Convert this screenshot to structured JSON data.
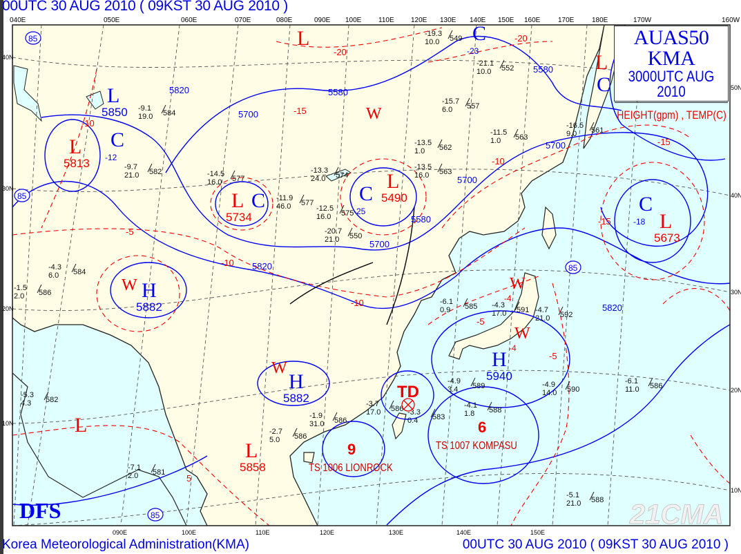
{
  "header": {
    "title": "00UTC 30 AUG 2010 ( 09KST 30 AUG 2010 )"
  },
  "footer": {
    "agency": "Korea Meteorological Administration(KMA)",
    "time": "00UTC 30 AUG 2010 ( 09KST 30 AUG 2010 )"
  },
  "legend": {
    "product": "AUAS50  KMA",
    "valid": "3000UTC AUG 2010",
    "fields": "HEIGHT(gpm) , TEMP(C)"
  },
  "axes": {
    "top": [
      "040E",
      "050E",
      "060E",
      "070E",
      "080E",
      "090E",
      "100E",
      "110E",
      "120E",
      "130E",
      "140E",
      "150E",
      "160E",
      "170E",
      "180E",
      "170W",
      "160W"
    ],
    "bottom": [
      "090E",
      "100E",
      "110E",
      "120E",
      "130E",
      "140E",
      "150E"
    ],
    "left": [
      "40N",
      "30N",
      "20N",
      "10N"
    ],
    "right": [
      "50N",
      "40N",
      "30N",
      "20N",
      "10N"
    ]
  },
  "colors": {
    "land": "#fffde6",
    "sea": "#e0ffff",
    "height_contour": "#0000ee",
    "temp_contour": "#ee0000",
    "graticule": "#555555"
  },
  "centers": [
    {
      "type": "H",
      "color": "#0000ee",
      "value": "5882"
    },
    {
      "type": "W",
      "color": "#ee0000",
      "value": ""
    },
    {
      "type": "H",
      "color": "#0000ee",
      "value": "5882"
    },
    {
      "type": "W",
      "color": "#ee0000",
      "value": ""
    },
    {
      "type": "H",
      "color": "#0000ee",
      "value": "5940"
    },
    {
      "type": "W",
      "color": "#ee0000",
      "value": "-4"
    },
    {
      "type": "W",
      "color": "#ee0000",
      "value": "-4"
    },
    {
      "type": "L",
      "color": "#ee0000",
      "value": "5813"
    },
    {
      "type": "L",
      "color": "#0000ee",
      "value": "5850"
    },
    {
      "type": "C",
      "color": "#0000ee",
      "value": "-12"
    },
    {
      "type": "L",
      "color": "#ee0000",
      "value": "5734"
    },
    {
      "type": "C",
      "color": "#0000ee",
      "value": ""
    },
    {
      "type": "L",
      "color": "#ee0000",
      "value": "5490"
    },
    {
      "type": "C",
      "color": "#0000ee",
      "value": "-25"
    },
    {
      "type": "C",
      "color": "#0000ee",
      "value": "-18"
    },
    {
      "type": "L",
      "color": "#ee0000",
      "value": "5673"
    },
    {
      "type": "L",
      "color": "#ee0000",
      "value": ""
    },
    {
      "type": "L",
      "color": "#ee0000",
      "value": ""
    },
    {
      "type": "C",
      "color": "#0000ee",
      "value": ""
    },
    {
      "type": "L",
      "color": "#ee0000",
      "value": ""
    },
    {
      "type": "L",
      "color": "#ee0000",
      "value": "5858"
    },
    {
      "type": "W",
      "color": "#ee0000",
      "value": ""
    },
    {
      "type": "C",
      "color": "#0000ee",
      "value": "-23"
    }
  ],
  "contour_labels": [
    {
      "text": "5580",
      "color": "#0000ee"
    },
    {
      "text": "5700",
      "color": "#0000ee"
    },
    {
      "text": "5820",
      "color": "#0000ee"
    },
    {
      "text": "5700",
      "color": "#0000ee"
    },
    {
      "text": "5820",
      "color": "#0000ee"
    },
    {
      "text": "5820",
      "color": "#0000ee"
    },
    {
      "text": "5700",
      "color": "#0000ee"
    },
    {
      "text": "5580",
      "color": "#0000ee"
    },
    {
      "text": "5580",
      "color": "#0000ee"
    },
    {
      "text": "5700",
      "color": "#0000ee"
    },
    {
      "text": "-20",
      "color": "#ee0000"
    },
    {
      "text": "-20",
      "color": "#ee0000"
    },
    {
      "text": "-10",
      "color": "#ee0000"
    },
    {
      "text": "-15",
      "color": "#ee0000"
    },
    {
      "text": "-15",
      "color": "#ee0000"
    },
    {
      "text": "-10",
      "color": "#ee0000"
    },
    {
      "text": "-5",
      "color": "#ee0000"
    },
    {
      "text": "-5",
      "color": "#ee0000"
    },
    {
      "text": "-5",
      "color": "#ee0000"
    },
    {
      "text": "-10",
      "color": "#ee0000"
    },
    {
      "text": "5",
      "color": "#ee0000"
    },
    {
      "text": "-15",
      "color": "#ee0000"
    },
    {
      "text": "-10",
      "color": "#ee0000"
    }
  ],
  "circled_labels": [
    "85",
    "85",
    "85",
    "85"
  ],
  "tropical": {
    "td": "TD",
    "lionrock": {
      "symbol": "9",
      "label": "TS  1006 LIONROCK"
    },
    "kompasu": {
      "symbol": "6",
      "label": "TS  1007 KOMPASU"
    }
  },
  "stations": [
    {
      "t": "-4.9",
      "d": "3.4",
      "h": "589"
    },
    {
      "t": "-4.1",
      "d": "1.8",
      "h": "588"
    },
    {
      "t": "-3.3",
      "d": "0.4",
      "h": "583"
    },
    {
      "t": "-3.7",
      "d": "17.0",
      "h": "586"
    },
    {
      "t": "-1.9",
      "d": "31.0",
      "h": "586"
    },
    {
      "t": "-2.7",
      "d": "5.0",
      "h": "586"
    },
    {
      "t": "-4.3",
      "d": "17.0",
      "h": "591"
    },
    {
      "t": "-4.7",
      "d": "21.0",
      "h": "592"
    },
    {
      "t": "-6.1",
      "d": "0.9",
      "h": "585"
    },
    {
      "t": "-11.9",
      "d": "46.0",
      "h": "577"
    },
    {
      "t": "-12.5",
      "d": "16.0",
      "h": "575"
    },
    {
      "t": "-14.5",
      "d": "16.0",
      "h": "577"
    },
    {
      "t": "-9.1",
      "d": "19.0",
      "h": "584"
    },
    {
      "t": "-9.7",
      "d": "21.0",
      "h": "582"
    },
    {
      "t": "-13.3",
      "d": "24.0",
      "h": "574"
    },
    {
      "t": "-20.7",
      "d": "21.0",
      "h": "550"
    },
    {
      "t": "-15.7",
      "d": "6.0",
      "h": "557"
    },
    {
      "t": "-13.5",
      "d": "1.0",
      "h": "562"
    },
    {
      "t": "-11.5",
      "d": "1.0",
      "h": "563"
    },
    {
      "t": "-4.9",
      "d": "14.0",
      "h": "590"
    },
    {
      "t": "-6.1",
      "d": "11.0",
      "h": "586"
    },
    {
      "t": "-5.1",
      "d": "21.0",
      "h": "588"
    },
    {
      "t": "-7.1",
      "d": "2.0",
      "h": "581"
    },
    {
      "t": "-5.3",
      "d": "4.3",
      "h": "582"
    },
    {
      "t": "-4.3",
      "d": "6.0",
      "h": "584"
    },
    {
      "t": "-1.5",
      "d": "2.0",
      "h": "586"
    },
    {
      "t": "-19.3",
      "d": "10.0",
      "h": "549"
    },
    {
      "t": "-21.1",
      "d": "10.0",
      "h": "552"
    },
    {
      "t": "-16.5",
      "d": "9.0",
      "h": "561"
    },
    {
      "t": "-13.5",
      "d": "16.0",
      "h": "563"
    }
  ],
  "logos": {
    "dfs": "DFS",
    "watermark": "21CMA"
  }
}
